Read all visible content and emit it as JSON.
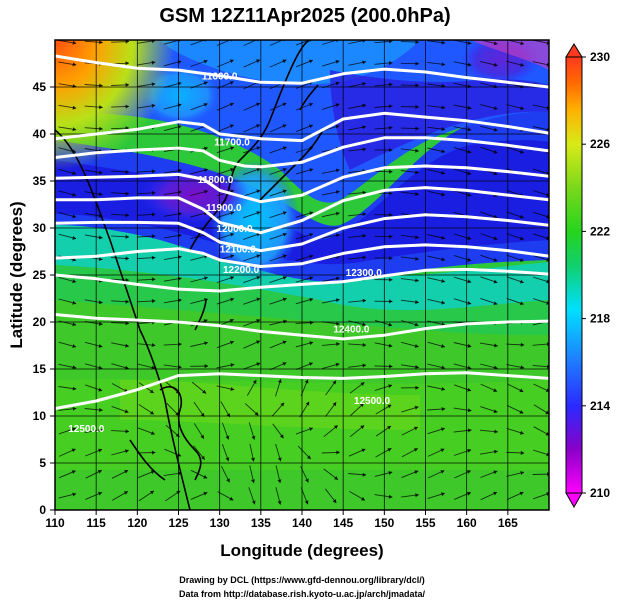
{
  "title": "GSM 12Z11Apr2025 (200.0hPa)",
  "credits": [
    "Drawing by DCL (https://www.gfd-dennou.org/library/dcl/)",
    "Data from http://database.rish.kyoto-u.ac.jp/arch/jmadata/"
  ],
  "chart_data": {
    "type": "heatmap",
    "description_kind": "temperature shading with geopotential height contours and wind streamlines",
    "xlabel": "Longitude (degrees)",
    "ylabel": "Latitude  (degrees)",
    "xlim": [
      110,
      170
    ],
    "ylim": [
      0,
      50
    ],
    "xticks": [
      110,
      115,
      120,
      125,
      130,
      135,
      140,
      145,
      150,
      155,
      160,
      165
    ],
    "yticks": [
      0,
      5,
      10,
      15,
      20,
      25,
      30,
      35,
      40,
      45
    ],
    "grid": true,
    "colorbar": {
      "min": 210,
      "max": 230,
      "ticks": [
        210,
        214,
        218,
        222,
        226,
        230
      ],
      "colors": [
        "#ff00ff",
        "#8a00c8",
        "#2a2aff",
        "#1f7aff",
        "#00e0ff",
        "#10d070",
        "#26d41e",
        "#7ad81a",
        "#d8ea18",
        "#ffb000",
        "#ff6a00",
        "#ff3a1e"
      ]
    },
    "contours": [
      {
        "label": "11600.0",
        "x": [
          110,
          115,
          120,
          125,
          130,
          135,
          140,
          145,
          150,
          155,
          160,
          165,
          170
        ],
        "y": [
          48.3,
          47.6,
          47.0,
          46.8,
          46.2,
          45.5,
          45.4,
          46.4,
          46.9,
          46.6,
          46.0,
          45.5,
          45.0
        ]
      },
      {
        "label": "11700.0",
        "x": [
          110,
          115,
          120,
          125,
          128,
          130,
          135,
          140,
          145,
          150,
          155,
          160,
          165,
          170
        ],
        "y": [
          39.5,
          40.0,
          40.5,
          41.3,
          41.0,
          40.0,
          39.5,
          39.3,
          41.6,
          42.2,
          41.8,
          41.4,
          40.8,
          40.1
        ]
      },
      {
        "label": "11800.0",
        "x": [
          110,
          115,
          120,
          125,
          128,
          130,
          133,
          135,
          140,
          145,
          150,
          155,
          160,
          165,
          170
        ],
        "y": [
          37.5,
          38.0,
          38.3,
          38.5,
          38.2,
          37.2,
          36.6,
          36.5,
          37.0,
          38.6,
          39.6,
          39.6,
          39.3,
          38.8,
          38.2
        ]
      },
      {
        "label": "11900.0",
        "x": [
          110,
          115,
          120,
          125,
          128,
          130,
          135,
          140,
          145,
          150,
          155,
          160,
          165,
          170
        ],
        "y": [
          35.3,
          35.4,
          35.5,
          35.7,
          35.2,
          34.0,
          32.8,
          33.5,
          35.4,
          36.4,
          36.6,
          36.4,
          36.0,
          35.5
        ]
      },
      {
        "label": "12000.0",
        "x": [
          110,
          115,
          120,
          125,
          128,
          130,
          135,
          140,
          145,
          150,
          155,
          160,
          165,
          170
        ],
        "y": [
          33.0,
          33.0,
          33.2,
          33.2,
          32.0,
          30.6,
          29.5,
          30.8,
          32.9,
          34.0,
          34.3,
          34.0,
          33.5,
          33.0
        ]
      },
      {
        "label": "12100.0",
        "x": [
          110,
          115,
          120,
          125,
          128,
          130,
          135,
          140,
          145,
          150,
          155,
          160,
          165,
          170
        ],
        "y": [
          30.5,
          30.6,
          30.6,
          30.5,
          29.5,
          28.5,
          27.6,
          28.3,
          30.0,
          31.0,
          31.4,
          31.2,
          30.8,
          30.3
        ]
      },
      {
        "label": "12200.0",
        "x": [
          110,
          115,
          120,
          125,
          128,
          130,
          135,
          140,
          145,
          150,
          155,
          160,
          165,
          170
        ],
        "y": [
          26.8,
          27.0,
          27.5,
          27.8,
          27.3,
          26.6,
          25.9,
          26.2,
          27.3,
          28.0,
          28.2,
          28.0,
          27.6,
          27.0
        ]
      },
      {
        "label": "12300.0",
        "x": [
          110,
          115,
          120,
          125,
          130,
          135,
          140,
          145,
          150,
          155,
          160,
          165,
          170
        ],
        "y": [
          25.0,
          24.6,
          24.0,
          23.5,
          23.3,
          23.7,
          24.0,
          24.3,
          24.9,
          25.5,
          25.6,
          25.4,
          25.1
        ]
      },
      {
        "label": "12400.0",
        "x": [
          110,
          115,
          120,
          125,
          130,
          135,
          140,
          145,
          150,
          155,
          160,
          165,
          170
        ],
        "y": [
          20.8,
          20.4,
          20.2,
          20.0,
          19.6,
          19.0,
          18.6,
          18.2,
          18.6,
          19.3,
          19.8,
          20.0,
          20.1
        ]
      },
      {
        "label": "12500.0",
        "x": [
          110,
          115,
          120,
          125,
          130,
          135,
          140,
          145,
          150,
          155,
          160,
          165,
          170
        ],
        "y": [
          10.8,
          11.6,
          12.8,
          14.3,
          14.5,
          14.3,
          14.1,
          14.0,
          14.2,
          14.5,
          14.6,
          14.3,
          14.0
        ]
      }
    ],
    "contour_labels": [
      {
        "text": "11600.0",
        "x": 130.0,
        "y": 45.8
      },
      {
        "text": "11700.0",
        "x": 131.5,
        "y": 38.8
      },
      {
        "text": "11800.0",
        "x": 129.5,
        "y": 34.8
      },
      {
        "text": "11900.0",
        "x": 130.5,
        "y": 31.8
      },
      {
        "text": "12000.0",
        "x": 131.8,
        "y": 29.6
      },
      {
        "text": "12100.0",
        "x": 132.2,
        "y": 27.4
      },
      {
        "text": "12200.0",
        "x": 132.6,
        "y": 25.2
      },
      {
        "text": "12300.0",
        "x": 147.5,
        "y": 24.9
      },
      {
        "text": "12400.0",
        "x": 146.0,
        "y": 18.9
      },
      {
        "text": "12500.0",
        "x": 148.5,
        "y": 11.3
      },
      {
        "text": "12500.0",
        "x": 113.8,
        "y": 8.3
      }
    ]
  }
}
